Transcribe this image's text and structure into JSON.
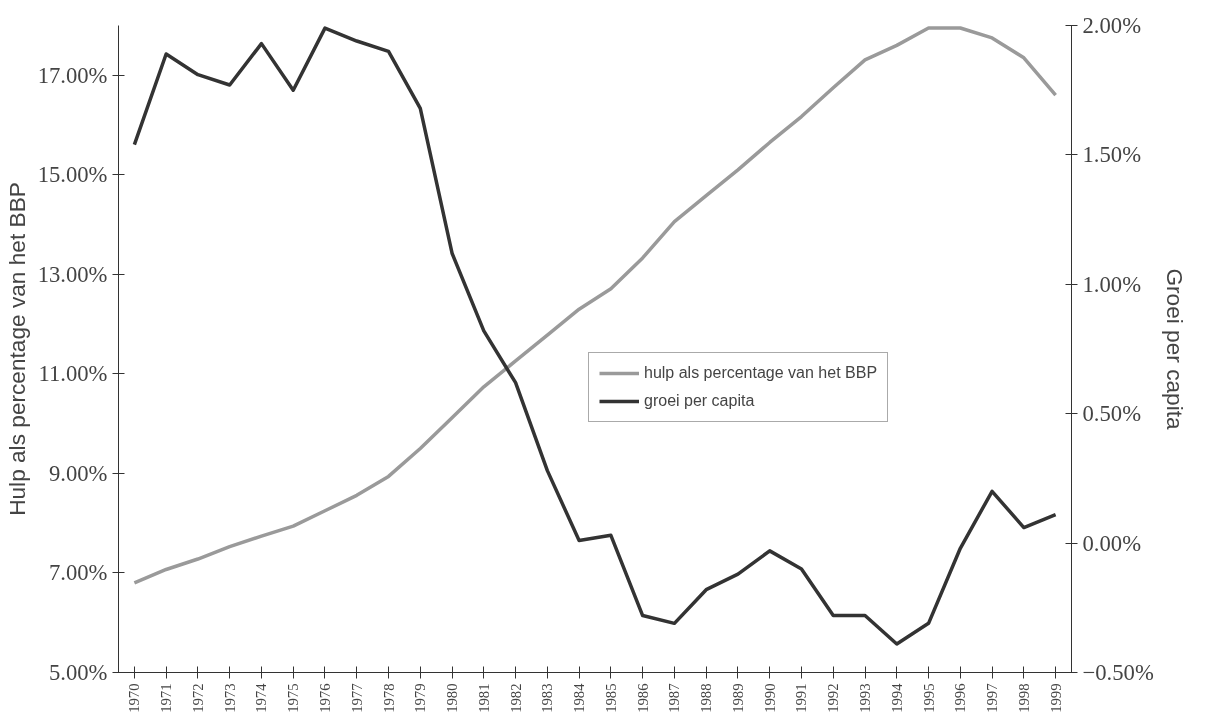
{
  "chart_data": {
    "type": "line",
    "xlabel": null,
    "ylabel": "Hulp als percentage van het BBP",
    "y2label": "Groei per capita",
    "x": [
      1970,
      1971,
      1972,
      1973,
      1974,
      1975,
      1976,
      1977,
      1978,
      1979,
      1980,
      1981,
      1982,
      1983,
      1984,
      1985,
      1986,
      1987,
      1988,
      1989,
      1990,
      1991,
      1992,
      1993,
      1994,
      1995,
      1996,
      1997,
      1998,
      1999
    ],
    "series": [
      {
        "name": "hulp als percentage van het BBP",
        "color": "#9a9a9a",
        "values": [
          6.8,
          7.07,
          7.28,
          7.53,
          7.74,
          7.94,
          8.25,
          8.56,
          8.94,
          9.5,
          10.12,
          10.74,
          11.26,
          11.78,
          12.3,
          12.71,
          13.33,
          14.06,
          14.58,
          15.1,
          15.65,
          16.17,
          16.75,
          17.31,
          17.6,
          17.95,
          17.95,
          17.75,
          17.35,
          16.6
        ]
      },
      {
        "name": "groei per capita",
        "color": "#333333",
        "axis": "y2",
        "values": [
          1.54,
          1.89,
          1.81,
          1.77,
          1.93,
          1.75,
          1.99,
          1.94,
          1.9,
          1.68,
          1.12,
          0.82,
          0.62,
          0.28,
          0.01,
          0.03,
          -0.28,
          -0.31,
          -0.18,
          -0.12,
          -0.03,
          -0.1,
          -0.28,
          -0.28,
          -0.39,
          -0.31,
          -0.02,
          0.2,
          0.06,
          0.11
        ]
      }
    ],
    "xlim": [
      1969.5,
      1999.5
    ],
    "xticks": [
      1970,
      1971,
      1972,
      1973,
      1974,
      1975,
      1976,
      1977,
      1978,
      1979,
      1980,
      1981,
      1982,
      1983,
      1984,
      1985,
      1986,
      1987,
      1988,
      1989,
      1990,
      1991,
      1992,
      1993,
      1994,
      1995,
      1996,
      1997,
      1998,
      1999
    ],
    "ylim": [
      5,
      18
    ],
    "yticks": [
      {
        "value": 5,
        "label": "5.00%"
      },
      {
        "value": 7,
        "label": "7.00%"
      },
      {
        "value": 9,
        "label": "9.00%"
      },
      {
        "value": 11,
        "label": "11.00%"
      },
      {
        "value": 13,
        "label": "13.00%"
      },
      {
        "value": 15,
        "label": "15.00%"
      },
      {
        "value": 17,
        "label": "17.00%"
      }
    ],
    "y2lim": [
      -0.5,
      2.0
    ],
    "y2ticks": [
      {
        "value": -0.5,
        "label": "−0.50%"
      },
      {
        "value": 0,
        "label": "0.00%"
      },
      {
        "value": 0.5,
        "label": "0.50%"
      },
      {
        "value": 1,
        "label": "1.00%"
      },
      {
        "value": 1.5,
        "label": "1.50%"
      },
      {
        "value": 2,
        "label": "2.00%"
      }
    ],
    "legend": "right",
    "grid": false,
    "marker": "none",
    "line_style": "solid"
  }
}
